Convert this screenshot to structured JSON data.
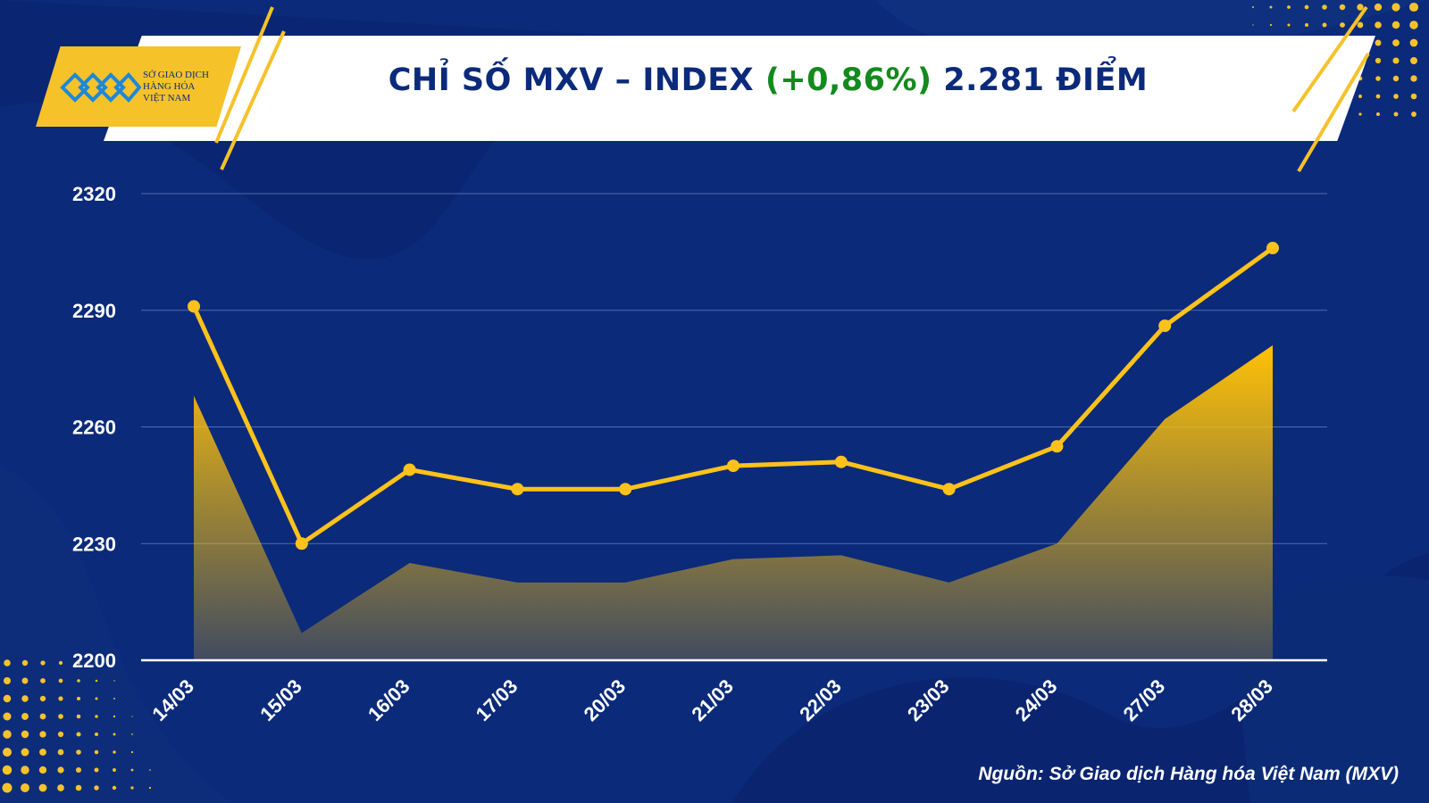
{
  "header": {
    "logo_text_line1": "Sở Giao Dịch",
    "logo_text_line2": "Hàng Hóa",
    "logo_text_line3": "Việt Nam",
    "title_prefix": "CHỈ SỐ MXV – INDEX",
    "title_change": "(+0,86%)",
    "title_value": "2.281 ĐIỂM"
  },
  "source": "Nguồn: Sở Giao dịch Hàng hóa Việt Nam (MXV)",
  "colors": {
    "background": "#0b2a7a",
    "accent_yellow": "#f6c22a",
    "change_green": "#138a1d",
    "title_navy": "#0b2a7a"
  },
  "chart_data": {
    "type": "line",
    "categories": [
      "14/03",
      "15/03",
      "16/03",
      "17/03",
      "20/03",
      "21/03",
      "22/03",
      "23/03",
      "24/03",
      "27/03",
      "28/03"
    ],
    "series": [
      {
        "values": [
          2291,
          2230,
          2249,
          2244,
          2244,
          2250,
          2251,
          2244,
          2255,
          2286,
          2306
        ],
        "style": "line-with-markers"
      },
      {
        "values": [
          2268,
          2207,
          2225,
          2220,
          2220,
          2226,
          2227,
          2220,
          2230,
          2262,
          2281
        ],
        "style": "area"
      }
    ],
    "ylim": [
      2200,
      2320
    ],
    "yticks": [
      "2200",
      "2230",
      "2260",
      "2290",
      "2320"
    ],
    "grid": true
  }
}
